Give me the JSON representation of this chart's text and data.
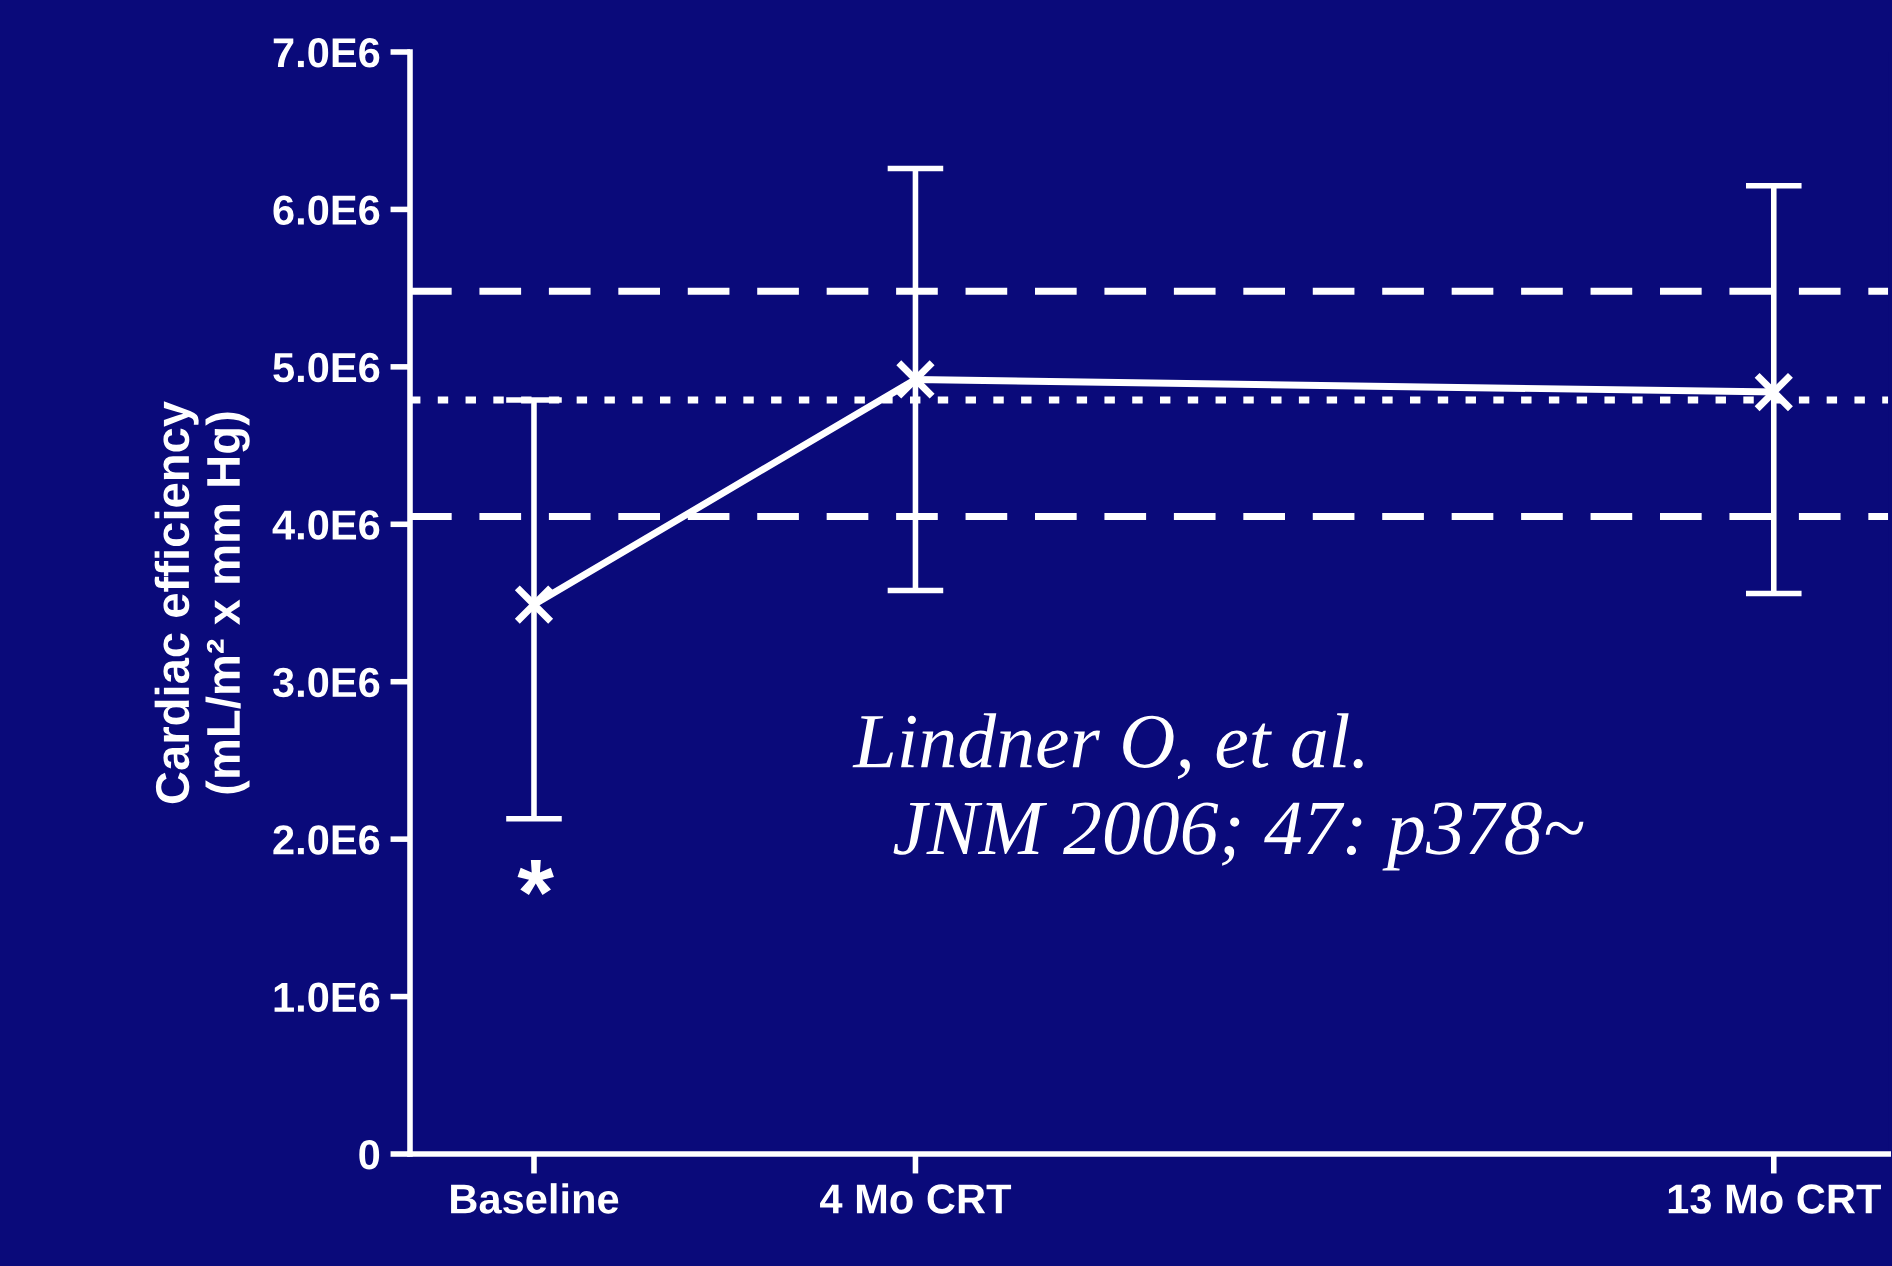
{
  "chart_data": {
    "type": "line",
    "ylabel": "Cardiac efficiency\n(mL/m² x mm Hg)",
    "x": [
      0,
      4,
      13
    ],
    "xticks": [
      {
        "value": 0,
        "label": "Baseline"
      },
      {
        "value": 4,
        "label": "4 Mo CRT"
      },
      {
        "value": 13,
        "label": "13 Mo CRT"
      }
    ],
    "xlim": [
      -1.3,
      14.2
    ],
    "series": [
      {
        "color": "#ffffff",
        "values": [
          3490000,
          4920000,
          4840000
        ],
        "errors": [
          [
            2130000,
            4790000
          ],
          [
            3580000,
            6260000
          ],
          [
            3560000,
            6150000
          ]
        ]
      }
    ],
    "ylim": [
      0,
      7000000
    ],
    "yticks": [
      0,
      {
        "value": 1000000,
        "label": "1.0E6"
      },
      {
        "value": 2000000,
        "label": "2.0E6"
      },
      {
        "value": 3000000,
        "label": "3.0E6"
      },
      {
        "value": 4000000,
        "label": "4.0E6"
      },
      {
        "value": 5000000,
        "label": "5.0E6"
      },
      {
        "value": 6000000,
        "label": "6.0E6"
      },
      {
        "value": 7000000,
        "label": "7.0E6"
      }
    ],
    "ref_lines": [
      {
        "axis": "y",
        "value": 5480000,
        "color": "#ffffff",
        "line_style": "dashed"
      },
      {
        "axis": "y",
        "value": 4790000,
        "color": "#ffffff",
        "line_style": "dotted"
      },
      {
        "axis": "y",
        "value": 4050000,
        "color": "#ffffff",
        "line_style": "dashed"
      }
    ],
    "marker": "cross",
    "line_style": "solid",
    "grid": false,
    "legend": false,
    "annotations": [
      "*",
      "Lindner O, et al.\n  JNM 2006; 47: p378~"
    ]
  }
}
